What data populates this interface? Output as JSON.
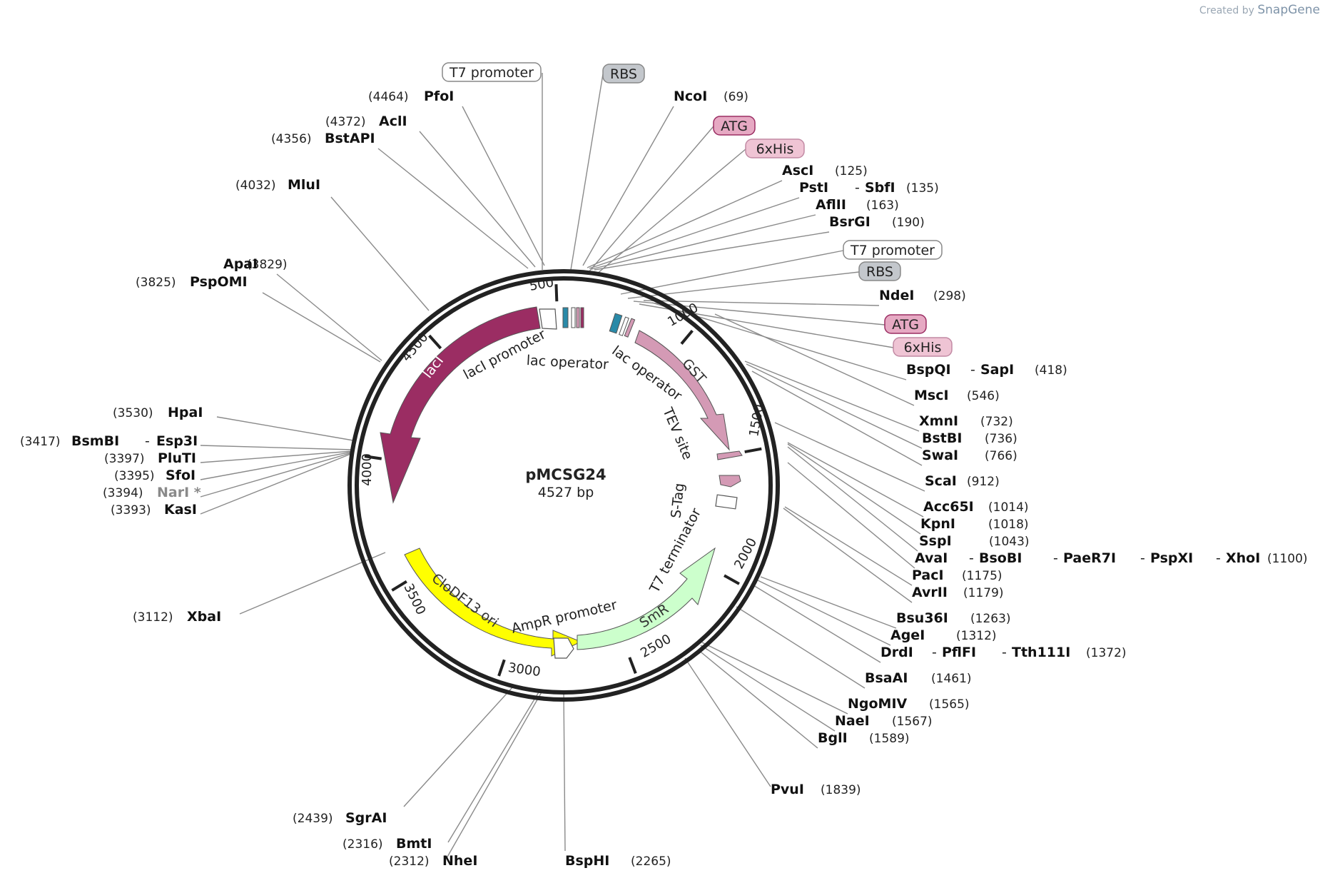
{
  "credit": {
    "created_by": "Created by",
    "brand": "SnapGene"
  },
  "plasmid": {
    "name": "pMCSG24",
    "length": "4527 bp",
    "total_bp": 4527
  },
  "tick_labels": [
    {
      "label": "500",
      "bp": 500
    },
    {
      "label": "1000",
      "bp": 1000
    },
    {
      "label": "1500",
      "bp": 1500
    },
    {
      "label": "2000",
      "bp": 2000
    },
    {
      "label": "2500",
      "bp": 2500
    },
    {
      "label": "3000",
      "bp": 3000
    },
    {
      "label": "3500",
      "bp": 3500
    },
    {
      "label": "4000",
      "bp": 4000
    },
    {
      "label": "4500",
      "bp": 4500
    }
  ],
  "features": [
    {
      "name": "lacI",
      "color": "#9b2d63"
    },
    {
      "name": "GST",
      "color": "#d49ab5"
    },
    {
      "name": "CloDF13 ori",
      "color": "#ffff00"
    },
    {
      "name": "SmR",
      "color": "#ccffcc"
    }
  ],
  "inner_labels": [
    {
      "text": "lacI promoter"
    },
    {
      "text": "lac operator"
    },
    {
      "text": "lac operator"
    },
    {
      "text": "TEV site"
    },
    {
      "text": "S-Tag"
    },
    {
      "text": "T7 terminator"
    },
    {
      "text": "AmpR promoter"
    }
  ],
  "feature_boxes": [
    {
      "text": "T7 promoter",
      "style": "white"
    },
    {
      "text": "RBS",
      "style": "gray"
    },
    {
      "text": "ATG",
      "style": "pink"
    },
    {
      "text": "6xHis",
      "style": "lightpink"
    },
    {
      "text": "T7 promoter",
      "style": "white"
    },
    {
      "text": "RBS",
      "style": "gray"
    },
    {
      "text": "ATG",
      "style": "pink"
    },
    {
      "text": "6xHis",
      "style": "lightpink"
    }
  ],
  "sites": [
    {
      "names": [
        "PfoI"
      ],
      "pos": "(4464)"
    },
    {
      "names": [
        "AclI"
      ],
      "pos": "(4372)"
    },
    {
      "names": [
        "BstAPI"
      ],
      "pos": "(4356)"
    },
    {
      "names": [
        "MluI"
      ],
      "pos": "(4032)"
    },
    {
      "names": [
        "ApaI"
      ],
      "pos": "(3829)"
    },
    {
      "names": [
        "PspOMI"
      ],
      "pos": "(3825)"
    },
    {
      "names": [
        "HpaI"
      ],
      "pos": "(3530)"
    },
    {
      "names": [
        "BsmBI",
        "Esp3I"
      ],
      "pos": "(3417)"
    },
    {
      "names": [
        "PluTI"
      ],
      "pos": "(3397)"
    },
    {
      "names": [
        "SfoI"
      ],
      "pos": "(3395)"
    },
    {
      "names": [
        "NarI *"
      ],
      "pos": "(3394)",
      "gray": true
    },
    {
      "names": [
        "KasI"
      ],
      "pos": "(3393)"
    },
    {
      "names": [
        "XbaI"
      ],
      "pos": "(3112)"
    },
    {
      "names": [
        "SgrAI"
      ],
      "pos": "(2439)"
    },
    {
      "names": [
        "BmtI"
      ],
      "pos": "(2316)"
    },
    {
      "names": [
        "NheI"
      ],
      "pos": "(2312)"
    },
    {
      "names": [
        "BspHI"
      ],
      "pos": "(2265)"
    },
    {
      "names": [
        "NcoI"
      ],
      "pos": "(69)"
    },
    {
      "names": [
        "AscI"
      ],
      "pos": "(125)"
    },
    {
      "names": [
        "PstI",
        "SbfI"
      ],
      "pos": "(135)"
    },
    {
      "names": [
        "AflII"
      ],
      "pos": "(163)"
    },
    {
      "names": [
        "BsrGI"
      ],
      "pos": "(190)"
    },
    {
      "names": [
        "NdeI"
      ],
      "pos": "(298)"
    },
    {
      "names": [
        "BspQI",
        "SapI"
      ],
      "pos": "(418)"
    },
    {
      "names": [
        "MscI"
      ],
      "pos": "(546)"
    },
    {
      "names": [
        "XmnI"
      ],
      "pos": "(732)"
    },
    {
      "names": [
        "BstBI"
      ],
      "pos": "(736)"
    },
    {
      "names": [
        "SwaI"
      ],
      "pos": "(766)"
    },
    {
      "names": [
        "ScaI"
      ],
      "pos": "(912)"
    },
    {
      "names": [
        "Acc65I"
      ],
      "pos": "(1014)"
    },
    {
      "names": [
        "KpnI"
      ],
      "pos": "(1018)"
    },
    {
      "names": [
        "SspI"
      ],
      "pos": "(1043)"
    },
    {
      "names": [
        "AvaI",
        "BsoBI",
        "PaeR7I",
        "PspXI",
        "XhoI"
      ],
      "pos": "(1100)"
    },
    {
      "names": [
        "PacI"
      ],
      "pos": "(1175)"
    },
    {
      "names": [
        "AvrII"
      ],
      "pos": "(1179)"
    },
    {
      "names": [
        "Bsu36I"
      ],
      "pos": "(1263)"
    },
    {
      "names": [
        "AgeI"
      ],
      "pos": "(1312)"
    },
    {
      "names": [
        "DrdI",
        "PflFI",
        "Tth111I"
      ],
      "pos": "(1372)"
    },
    {
      "names": [
        "BsaAI"
      ],
      "pos": "(1461)"
    },
    {
      "names": [
        "NgoMIV"
      ],
      "pos": "(1565)"
    },
    {
      "names": [
        "NaeI"
      ],
      "pos": "(1567)"
    },
    {
      "names": [
        "BglI"
      ],
      "pos": "(1589)"
    },
    {
      "names": [
        "PvuI"
      ],
      "pos": "(1839)"
    }
  ]
}
